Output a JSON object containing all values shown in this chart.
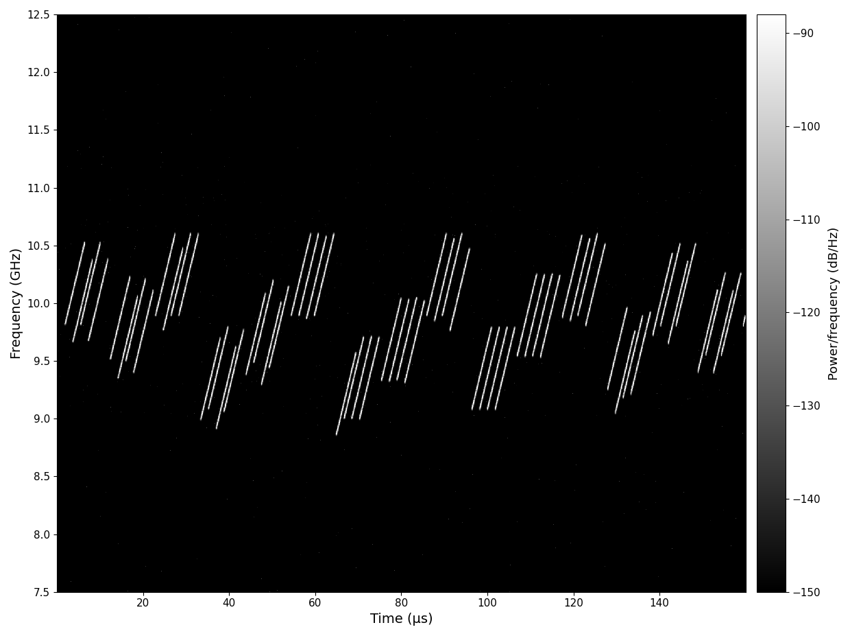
{
  "title": "",
  "xlabel": "Time (μs)",
  "ylabel": "Frequency (GHz)",
  "colorbar_label": "Power/frequency (dB/Hz)",
  "xlim": [
    0,
    160
  ],
  "ylim": [
    7.5,
    12.5
  ],
  "clim": [
    -150,
    -88
  ],
  "xticks": [
    20,
    40,
    60,
    80,
    100,
    120,
    140
  ],
  "yticks": [
    7.5,
    8.0,
    8.5,
    9.0,
    9.5,
    10.0,
    10.5,
    11.0,
    11.5,
    12.0,
    12.5
  ],
  "colorbar_ticks": [
    -150,
    -140,
    -130,
    -120,
    -110,
    -100,
    -90
  ],
  "background_color": "#000000",
  "noise_floor": -150,
  "signal_peak": -88,
  "chirp_bw_ghz": 0.7,
  "chirp_dur_us": 4.5,
  "signal_freq_min": 8.8,
  "signal_freq_max": 10.6,
  "scatter_noise_density": 0.0003
}
